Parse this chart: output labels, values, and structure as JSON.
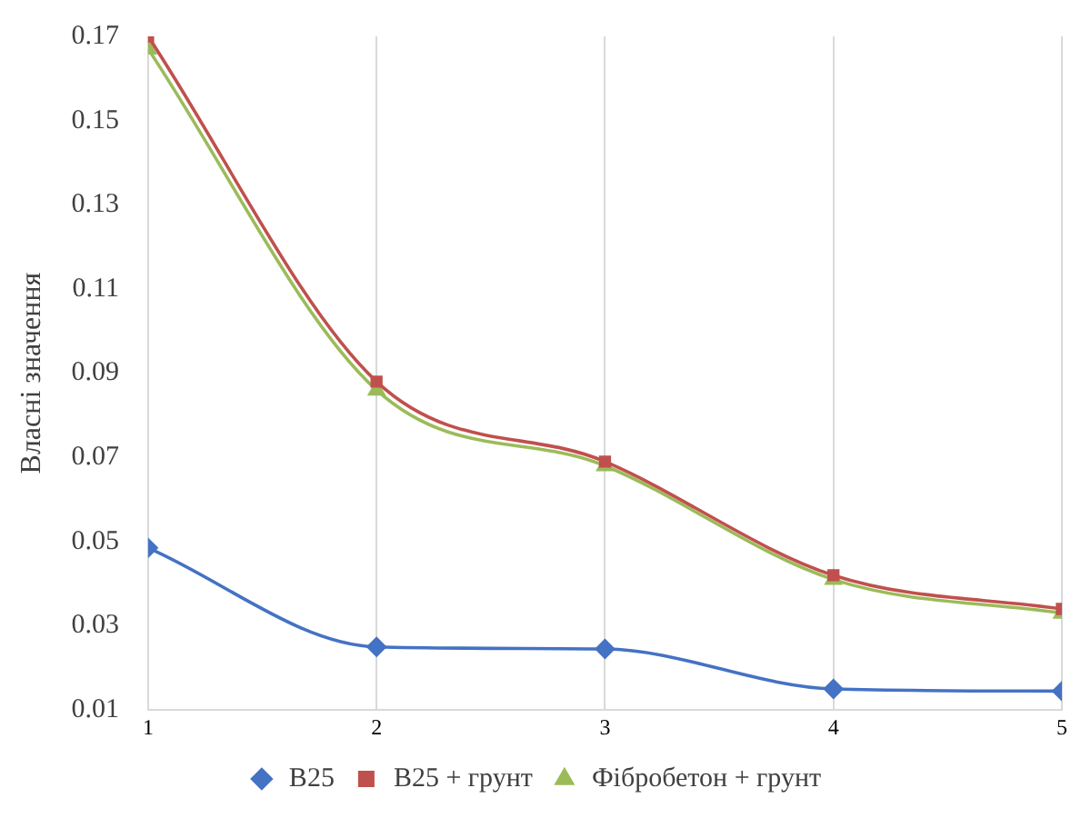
{
  "chart_data": {
    "type": "line",
    "ylabel": "Власні значення",
    "x": [
      1,
      2,
      3,
      4,
      5
    ],
    "xlim": [
      1,
      5
    ],
    "xticks": [
      1,
      2,
      3,
      4,
      5
    ],
    "ylim": [
      0.01,
      0.17
    ],
    "yticks": [
      0.01,
      0.03,
      0.05,
      0.07,
      0.09,
      0.11,
      0.13,
      0.15,
      0.17
    ],
    "grid": "x",
    "legend": "bottom",
    "series": [
      {
        "name": "B25",
        "color": "#4472c4",
        "marker": "diamond",
        "values": [
          0.0485,
          0.025,
          0.0245,
          0.015,
          0.0145
        ]
      },
      {
        "name": "B25 + грунт",
        "color": "#c0504d",
        "marker": "square",
        "values": [
          0.17,
          0.088,
          0.069,
          0.042,
          0.034
        ]
      },
      {
        "name": "Фібробетон + грунт",
        "color": "#9bbb59",
        "marker": "triangle",
        "values": [
          0.167,
          0.086,
          0.068,
          0.041,
          0.033
        ]
      }
    ]
  }
}
